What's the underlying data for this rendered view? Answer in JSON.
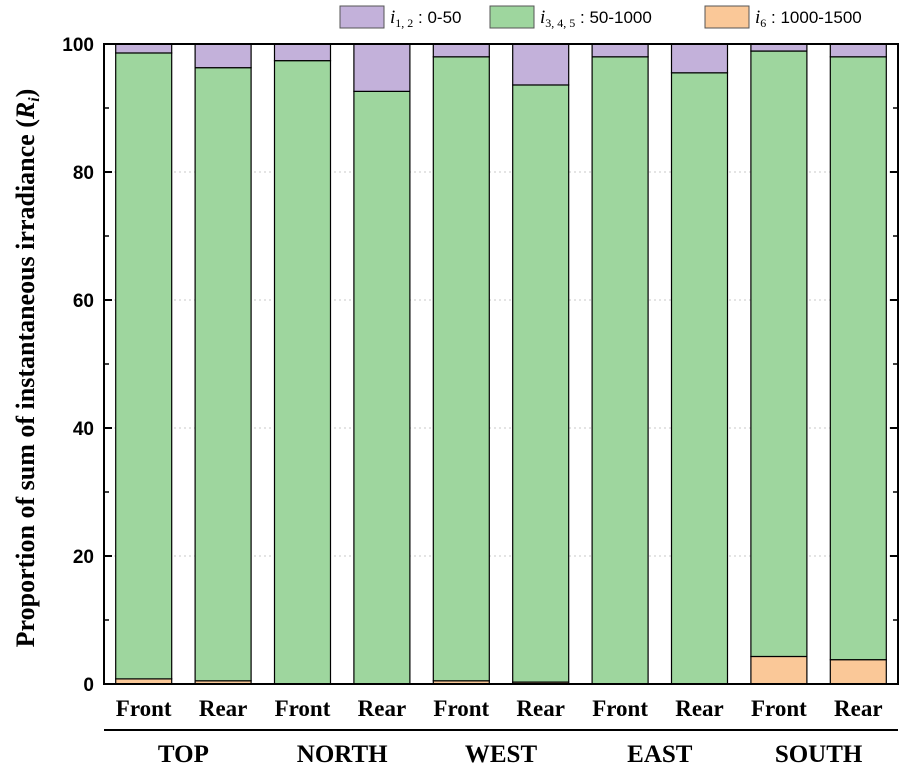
{
  "chart_data": {
    "type": "bar",
    "stacked": true,
    "ylabel": "Proportion of sum of instantaneous irradiance (Ri)",
    "ylim": [
      0,
      100
    ],
    "yticks": [
      0,
      20,
      40,
      60,
      80,
      100
    ],
    "grid": true,
    "legend_position": "top-right",
    "groups": [
      "TOP",
      "NORTH",
      "WEST",
      "EAST",
      "SOUTH"
    ],
    "categories": [
      "Front",
      "Rear",
      "Front",
      "Rear",
      "Front",
      "Rear",
      "Front",
      "Rear",
      "Front",
      "Rear"
    ],
    "series": [
      {
        "key": "i6",
        "legend": {
          "sym": "i",
          "sub": "6",
          "range": "1000-1500"
        },
        "color": "#FAC898",
        "values": [
          0.8,
          0.5,
          0,
          0,
          0.5,
          0.3,
          0,
          0,
          4.3,
          3.8
        ]
      },
      {
        "key": "i345",
        "legend": {
          "sym": "i",
          "sub": "3, 4, 5",
          "range": "50-1000"
        },
        "color": "#9ED69E",
        "values": [
          97.8,
          95.8,
          97.4,
          92.6,
          97.5,
          93.3,
          98.0,
          95.5,
          94.6,
          94.2
        ]
      },
      {
        "key": "i12",
        "legend": {
          "sym": "i",
          "sub": "1, 2",
          "range": "0-50"
        },
        "color": "#C3B1DA",
        "values": [
          1.4,
          3.7,
          2.6,
          7.4,
          2.0,
          6.4,
          2.0,
          4.5,
          1.1,
          2.0
        ]
      }
    ]
  }
}
